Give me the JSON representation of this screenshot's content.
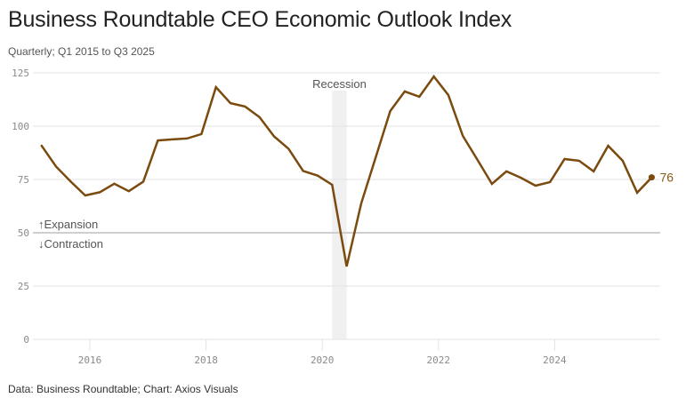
{
  "header": {
    "title": "Business Roundtable CEO Economic Outlook Index",
    "subtitle": "Quarterly; Q1 2015 to Q3 2025"
  },
  "footer": {
    "source": "Data: Business Roundtable; Chart: Axios Visuals"
  },
  "colors": {
    "line": "#7B4A0E",
    "recession_band": "#F0F0F0",
    "grid": "#E3E3E3",
    "threshold_line": "#CFCFCF",
    "end_label": "#8A5A1A"
  },
  "chart_data": {
    "type": "line",
    "title": "Business Roundtable CEO Economic Outlook Index",
    "subtitle": "Quarterly; Q1 2015 to Q3 2025",
    "xlabel": "",
    "ylabel": "",
    "ylim": [
      0,
      125
    ],
    "yticks": [
      0,
      25,
      50,
      75,
      100,
      125
    ],
    "xticks": [
      2016,
      2018,
      2020,
      2022,
      2024
    ],
    "grid": true,
    "legend": "none",
    "x": [
      "Q1 2015",
      "Q2 2015",
      "Q3 2015",
      "Q4 2015",
      "Q1 2016",
      "Q2 2016",
      "Q3 2016",
      "Q4 2016",
      "Q1 2017",
      "Q2 2017",
      "Q3 2017",
      "Q4 2017",
      "Q1 2018",
      "Q2 2018",
      "Q3 2018",
      "Q4 2018",
      "Q1 2019",
      "Q2 2019",
      "Q3 2019",
      "Q4 2019",
      "Q1 2020",
      "Q2 2020",
      "Q3 2020",
      "Q4 2020",
      "Q1 2021",
      "Q2 2021",
      "Q3 2021",
      "Q4 2021",
      "Q1 2022",
      "Q2 2022",
      "Q3 2022",
      "Q4 2022",
      "Q1 2023",
      "Q2 2023",
      "Q3 2023",
      "Q4 2023",
      "Q1 2024",
      "Q2 2024",
      "Q3 2024",
      "Q4 2024",
      "Q1 2025",
      "Q2 2025",
      "Q3 2025"
    ],
    "series": [
      {
        "name": "CEO Economic Outlook Index",
        "values": [
          90.8,
          81.0,
          74.0,
          67.5,
          69.0,
          73.0,
          69.5,
          74.0,
          93.3,
          93.8,
          94.2,
          96.3,
          118.3,
          110.8,
          109.2,
          104.2,
          95.2,
          89.4,
          79.0,
          76.8,
          72.5,
          34.2,
          63.8,
          85.4,
          107.1,
          116.3,
          113.8,
          123.3,
          114.6,
          95.4,
          84.2,
          72.9,
          78.8,
          75.8,
          72.1,
          73.8,
          84.6,
          83.8,
          78.8,
          90.8,
          83.8,
          68.8,
          76.0
        ]
      }
    ],
    "end_label": "76",
    "threshold": {
      "value": 50,
      "above_label": "Expansion",
      "below_label": "Contraction",
      "above_icon": "↑",
      "below_icon": "↓"
    },
    "annotations": [
      {
        "type": "band",
        "label": "Recession",
        "start_quarter": "Q1 2020",
        "end_quarter": "Q2 2020"
      }
    ]
  }
}
